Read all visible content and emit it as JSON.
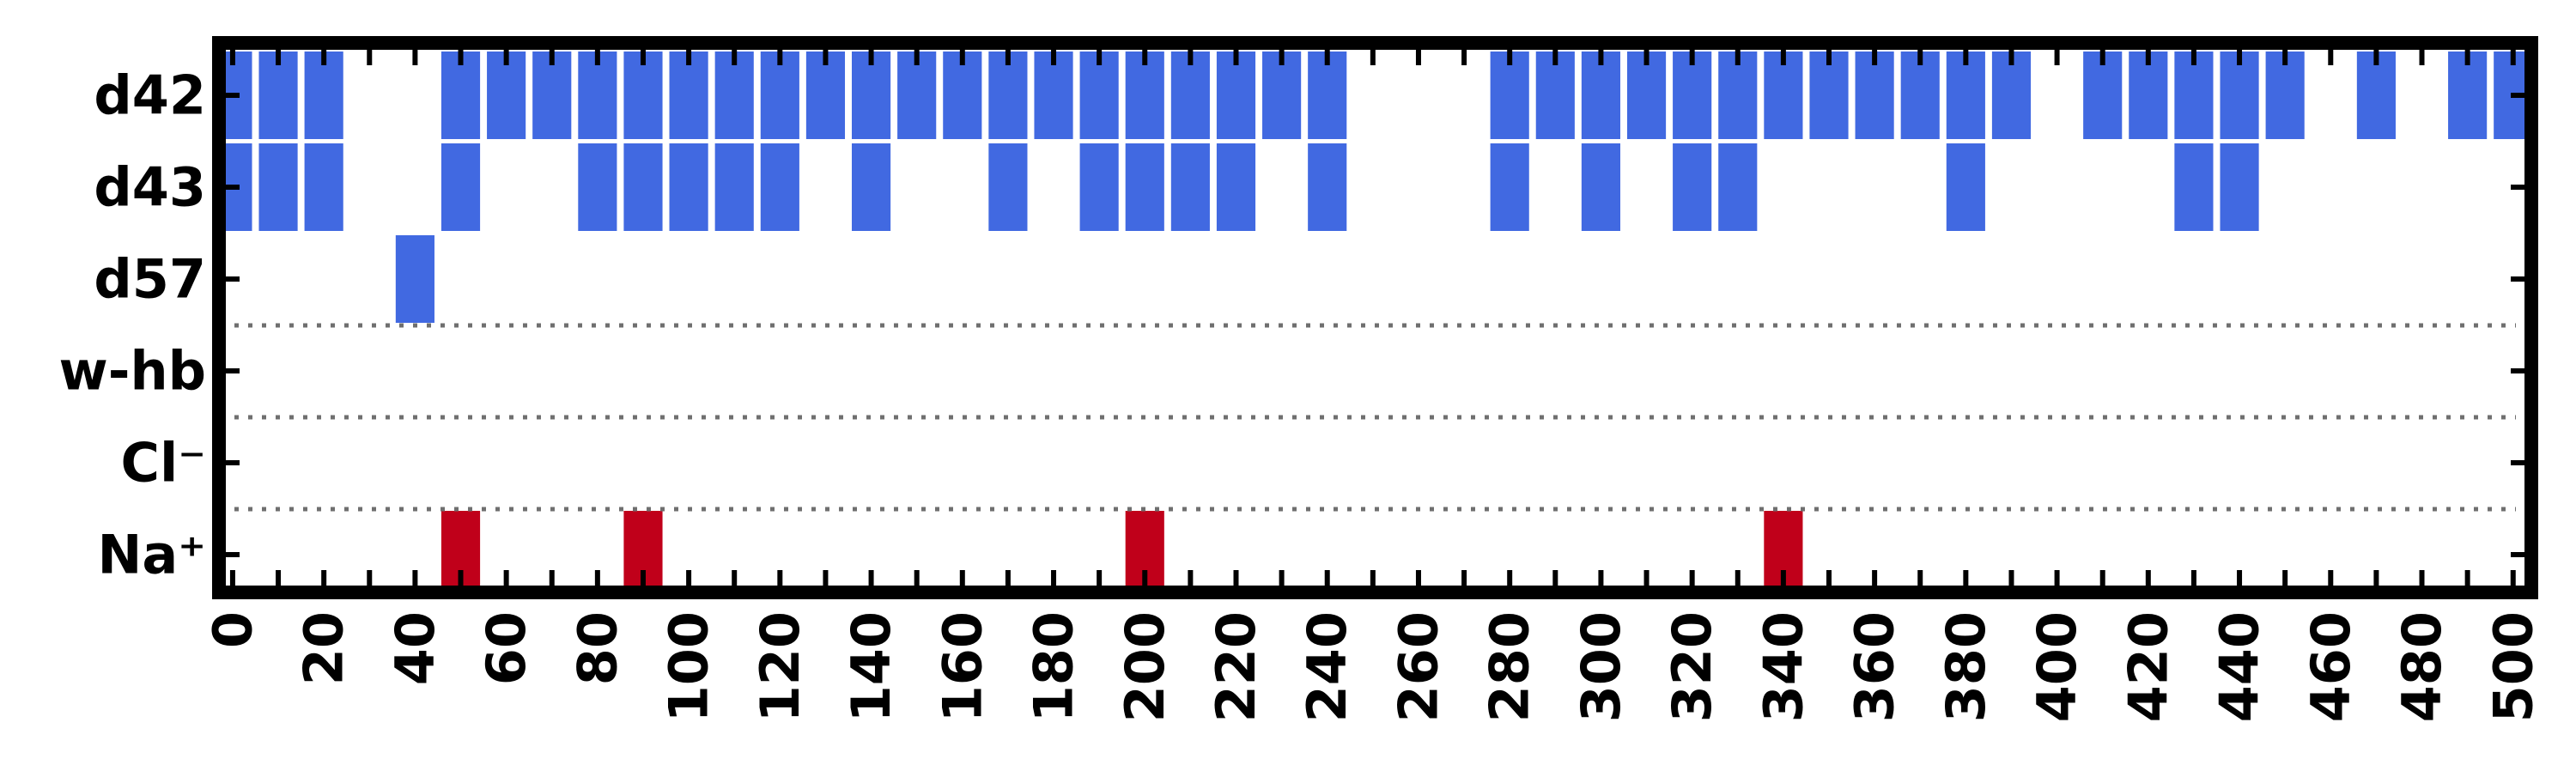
{
  "chart_data": {
    "type": "event-raster",
    "title": "",
    "xlabel": "",
    "ylabel": "",
    "xlim": [
      -3,
      504
    ],
    "x_ticks": [
      0,
      20,
      40,
      60,
      80,
      100,
      120,
      140,
      160,
      180,
      200,
      220,
      240,
      260,
      280,
      300,
      320,
      340,
      360,
      380,
      400,
      420,
      440,
      460,
      480,
      500
    ],
    "x_tick_labels": [
      "0",
      "20",
      "40",
      "60",
      "80",
      "100",
      "120",
      "140",
      "160",
      "180",
      "200",
      "220",
      "240",
      "260",
      "280",
      "300",
      "320",
      "340",
      "360",
      "380",
      "400",
      "420",
      "440",
      "460",
      "480",
      "500"
    ],
    "x_minor_tick_step": 10,
    "bin_width": 10,
    "bar_width_fraction": 0.85,
    "grid": false,
    "legend": "none",
    "separator_style": "dotted",
    "rows": [
      {
        "label": "d42",
        "color": "#4169e1",
        "events": [
          0,
          10,
          20,
          50,
          60,
          70,
          80,
          90,
          100,
          110,
          120,
          130,
          140,
          150,
          160,
          170,
          180,
          190,
          200,
          210,
          220,
          230,
          240,
          280,
          290,
          300,
          310,
          320,
          330,
          340,
          350,
          360,
          370,
          380,
          390,
          410,
          420,
          430,
          440,
          450,
          470,
          490,
          500
        ]
      },
      {
        "label": "d43",
        "color": "#4169e1",
        "events": [
          0,
          10,
          20,
          50,
          80,
          90,
          100,
          110,
          120,
          140,
          170,
          190,
          200,
          210,
          220,
          240,
          280,
          300,
          320,
          330,
          380,
          430,
          440
        ]
      },
      {
        "label": "d57",
        "color": "#4169e1",
        "events": [
          40
        ]
      },
      {
        "label": "w-hb",
        "color": "#4169e1",
        "events": []
      },
      {
        "label": "Cl⁻",
        "color": "#c0001a",
        "events": []
      },
      {
        "label": "Na⁺",
        "color": "#c0001a",
        "events": [
          50,
          90,
          200,
          340
        ]
      }
    ],
    "separators_after_rows": [
      "d57",
      "w-hb",
      "Cl⁻"
    ]
  }
}
